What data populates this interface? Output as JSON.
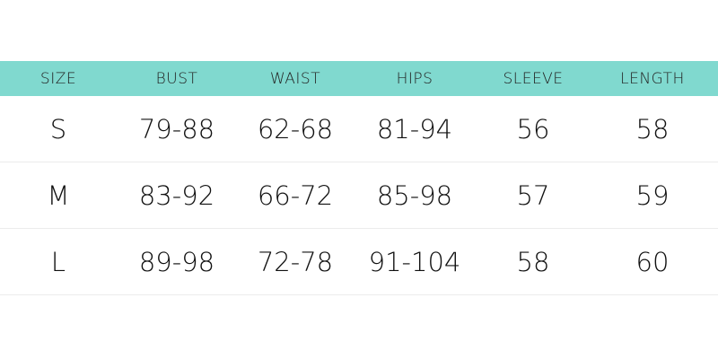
{
  "headers": [
    "SIZE",
    "BUST",
    "WAIST",
    "HIPS",
    "SLEEVE",
    "LENGTH"
  ],
  "rows": [
    [
      "S",
      "79-88",
      "62-68",
      "81-94",
      "56",
      "58"
    ],
    [
      "M",
      "83-92",
      "66-72",
      "85-98",
      "57",
      "59"
    ],
    [
      "L",
      "89-98",
      "72-78",
      "91-104",
      "58",
      "60"
    ]
  ],
  "colors": {
    "header_bg": "#80d9cf",
    "divider": "#ececec"
  }
}
